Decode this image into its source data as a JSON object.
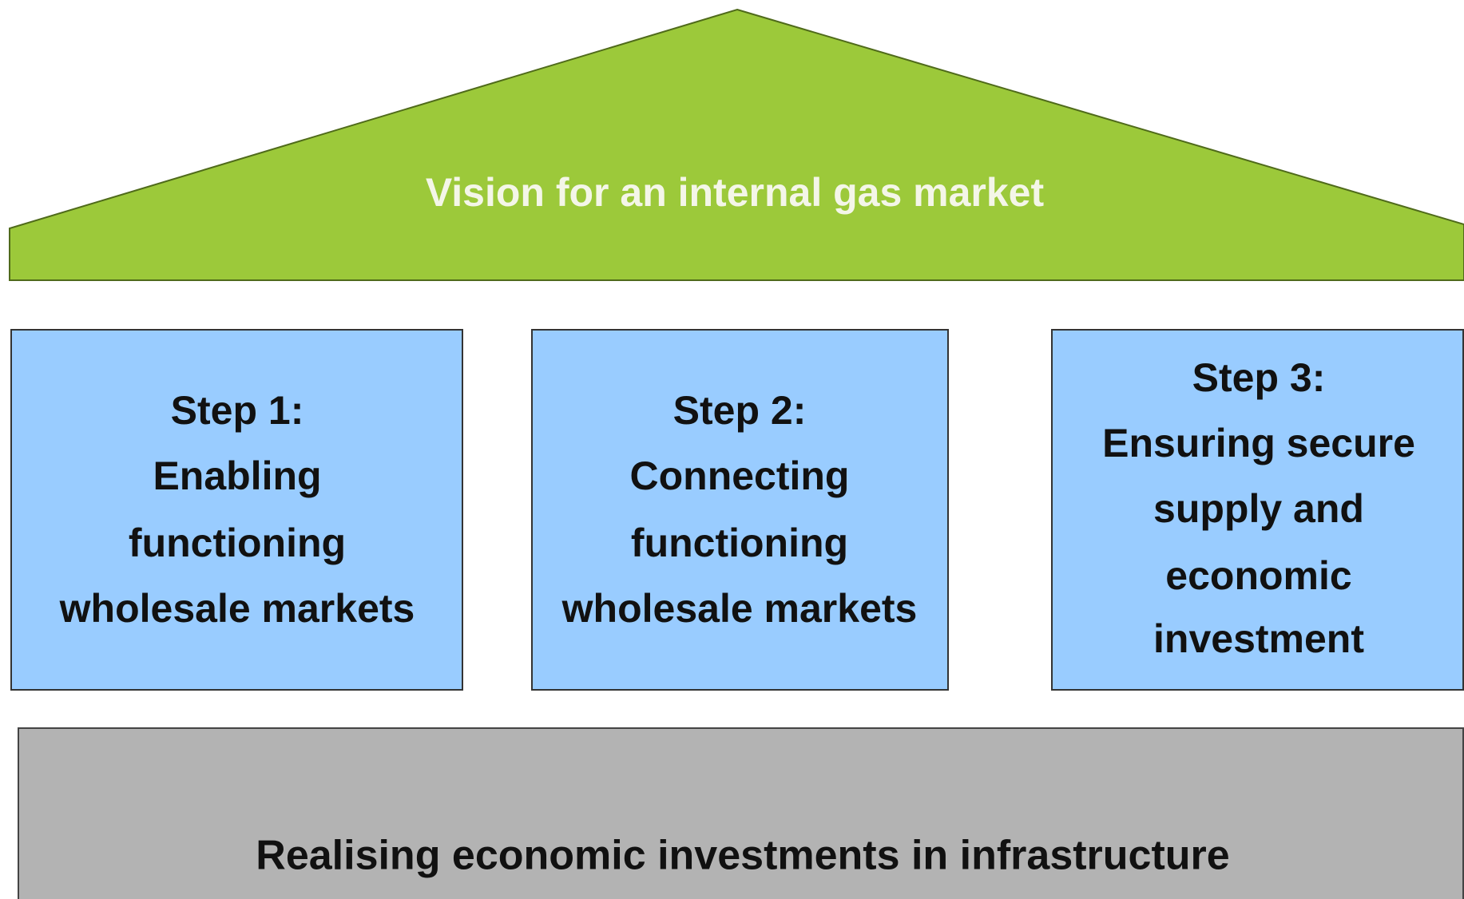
{
  "roof": {
    "title": "Vision for an internal gas market"
  },
  "pillars": [
    {
      "lines": [
        "Step 1:",
        "Enabling",
        "functioning",
        "wholesale markets"
      ]
    },
    {
      "lines": [
        "Step 2:",
        "Connecting",
        "functioning",
        "wholesale markets"
      ]
    },
    {
      "lines": [
        "Step 3:",
        "Ensuring secure",
        "supply and",
        "economic",
        "investment"
      ]
    }
  ],
  "foundation": {
    "label": "Realising economic investments in infrastructure"
  }
}
